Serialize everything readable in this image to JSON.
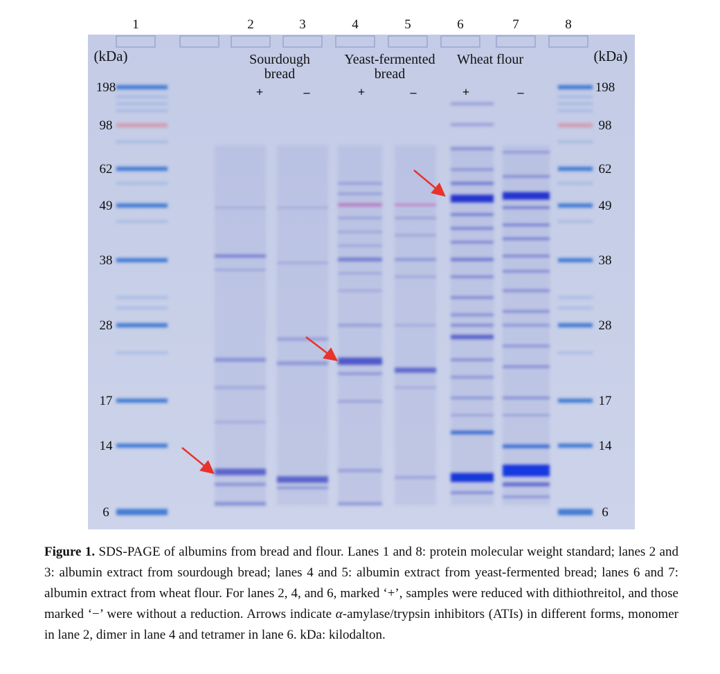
{
  "figure": {
    "lanes": [
      "1",
      "2",
      "3",
      "4",
      "5",
      "6",
      "7",
      "8"
    ],
    "unit_left": "(kDa)",
    "unit_right": "(kDa)",
    "markers_left": [
      "198",
      "98",
      "62",
      "49",
      "38",
      "28",
      "17",
      "14",
      "6"
    ],
    "markers_right": [
      "198",
      "98",
      "62",
      "49",
      "38",
      "28",
      "17",
      "14",
      "6"
    ],
    "groups": [
      [
        "Sourdough",
        "bread"
      ],
      [
        "Yeast-fermented",
        "bread"
      ],
      [
        "Wheat flour"
      ]
    ],
    "signs": [
      "+",
      "–",
      "+",
      "–",
      "+",
      "–"
    ]
  },
  "caption": {
    "label": "Figure 1.",
    "text_1": " SDS-PAGE of albumins from bread and flour. Lanes 1 and 8: protein molecular weight standard; lanes 2 and 3: albumin extract from sourdough bread; lanes 4 and 5: albumin extract from yeast-fermented bread; lanes 6 and 7: albumin extract from wheat flour. For lanes 2, 4, and 6, marked ‘+’, samples were reduced with dithiothreitol, and those marked ‘−’ were without a reduction. Arrows indicate ",
    "alpha": "α",
    "text_2": "-amylase/trypsin inhibitors (ATIs) in different forms, monomer in lane 2, dimer in lane 4 and tetramer in lane 6. kDa: kilodalton."
  }
}
